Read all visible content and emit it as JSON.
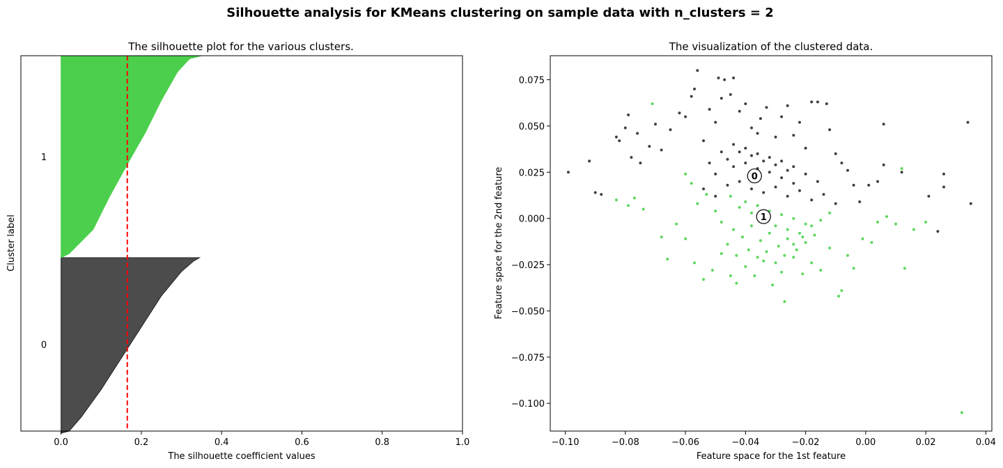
{
  "suptitle": "Silhouette analysis for KMeans clustering on sample data with n_clusters = 2",
  "chart_data": [
    {
      "type": "area",
      "title": "The silhouette plot for the various clusters.",
      "xlabel": "The silhouette coefficient values",
      "ylabel": "Cluster label",
      "xlim": [
        -0.1,
        1.0
      ],
      "xticks": [
        "0.0",
        "0.2",
        "0.4",
        "0.6",
        "0.8",
        "1.0"
      ],
      "xtick_values": [
        0.0,
        0.2,
        0.4,
        0.6,
        0.8,
        1.0
      ],
      "average_silhouette": 0.165,
      "average_line_color": "#ff0000",
      "clusters": [
        {
          "label": "0",
          "color": "#4c4c4c",
          "profile": [
            [
              0.0,
              -0.012
            ],
            [
              0.02,
              0.0
            ],
            [
              0.05,
              0.08
            ],
            [
              0.1,
              0.24
            ],
            [
              0.15,
              0.42
            ],
            [
              0.2,
              0.6
            ],
            [
              0.25,
              0.78
            ],
            [
              0.3,
              0.92
            ],
            [
              0.33,
              0.98
            ],
            [
              0.345,
              1.0
            ]
          ]
        },
        {
          "label": "1",
          "color": "#4ccf4c",
          "profile": [
            [
              0.0,
              0.0
            ],
            [
              0.02,
              0.02
            ],
            [
              0.08,
              0.14
            ],
            [
              0.12,
              0.3
            ],
            [
              0.17,
              0.48
            ],
            [
              0.21,
              0.62
            ],
            [
              0.25,
              0.78
            ],
            [
              0.29,
              0.92
            ],
            [
              0.32,
              0.985
            ],
            [
              0.35,
              1.0
            ]
          ]
        }
      ]
    },
    {
      "type": "scatter",
      "title": "The visualization of the clustered data.",
      "xlabel": "Feature space for the 1st feature",
      "ylabel": "Feature space for the 2nd feature",
      "xlim": [
        -0.105,
        0.042
      ],
      "ylim": [
        -0.115,
        0.088
      ],
      "xticks": [
        "−0.10",
        "−0.08",
        "−0.06",
        "−0.04",
        "−0.02",
        "0.00",
        "0.02",
        "0.04"
      ],
      "xtick_values": [
        -0.1,
        -0.08,
        -0.06,
        -0.04,
        -0.02,
        0.0,
        0.02,
        0.04
      ],
      "yticks": [
        "0.075",
        "0.050",
        "0.025",
        "0.000",
        "−0.025",
        "−0.050",
        "−0.075",
        "−0.100"
      ],
      "ytick_values": [
        0.075,
        0.05,
        0.025,
        0.0,
        -0.025,
        -0.05,
        -0.075,
        -0.1
      ],
      "series": [
        {
          "color": "#000000",
          "points": [
            [
              -0.099,
              0.025
            ],
            [
              -0.092,
              0.031
            ],
            [
              -0.09,
              0.014
            ],
            [
              -0.088,
              0.013
            ],
            [
              -0.083,
              0.044
            ],
            [
              -0.082,
              0.042
            ],
            [
              -0.08,
              0.049
            ],
            [
              -0.079,
              0.056
            ],
            [
              -0.078,
              0.033
            ],
            [
              -0.076,
              0.046
            ],
            [
              -0.075,
              0.03
            ],
            [
              -0.072,
              0.039
            ],
            [
              -0.07,
              0.051
            ],
            [
              -0.068,
              0.037
            ],
            [
              -0.065,
              0.048
            ],
            [
              -0.062,
              0.057
            ],
            [
              -0.06,
              0.055
            ],
            [
              -0.058,
              0.066
            ],
            [
              -0.057,
              0.07
            ],
            [
              -0.056,
              0.08
            ],
            [
              -0.054,
              0.042
            ],
            [
              -0.052,
              0.059
            ],
            [
              -0.05,
              0.052
            ],
            [
              -0.049,
              0.076
            ],
            [
              -0.048,
              0.065
            ],
            [
              -0.047,
              0.075
            ],
            [
              -0.045,
              0.067
            ],
            [
              -0.044,
              0.076
            ],
            [
              -0.042,
              0.058
            ],
            [
              -0.04,
              0.062
            ],
            [
              -0.038,
              0.049
            ],
            [
              -0.036,
              0.046
            ],
            [
              -0.035,
              0.054
            ],
            [
              -0.033,
              0.06
            ],
            [
              -0.03,
              0.044
            ],
            [
              -0.028,
              0.055
            ],
            [
              -0.026,
              0.061
            ],
            [
              -0.024,
              0.045
            ],
            [
              -0.022,
              0.052
            ],
            [
              -0.02,
              0.038
            ],
            [
              -0.018,
              0.063
            ],
            [
              -0.016,
              0.063
            ],
            [
              -0.013,
              0.062
            ],
            [
              -0.012,
              0.048
            ],
            [
              -0.01,
              0.035
            ],
            [
              -0.008,
              0.03
            ],
            [
              -0.006,
              0.026
            ],
            [
              -0.004,
              0.018
            ],
            [
              -0.002,
              0.009
            ],
            [
              0.001,
              0.018
            ],
            [
              0.004,
              0.02
            ],
            [
              0.006,
              0.029
            ],
            [
              0.006,
              0.051
            ],
            [
              0.012,
              0.025
            ],
            [
              0.021,
              0.012
            ],
            [
              0.024,
              -0.007
            ],
            [
              0.026,
              0.024
            ],
            [
              0.026,
              0.017
            ],
            [
              0.034,
              0.052
            ],
            [
              0.035,
              0.008
            ],
            [
              -0.046,
              0.032
            ],
            [
              -0.044,
              0.028
            ],
            [
              -0.042,
              0.036
            ],
            [
              -0.04,
              0.03
            ],
            [
              -0.038,
              0.034
            ],
            [
              -0.036,
              0.027
            ],
            [
              -0.034,
              0.031
            ],
            [
              -0.032,
              0.025
            ],
            [
              -0.03,
              0.029
            ],
            [
              -0.028,
              0.022
            ],
            [
              -0.026,
              0.026
            ],
            [
              -0.024,
              0.019
            ],
            [
              -0.05,
              0.024
            ],
            [
              -0.052,
              0.03
            ],
            [
              -0.048,
              0.036
            ],
            [
              -0.044,
              0.04
            ],
            [
              -0.04,
              0.038
            ],
            [
              -0.036,
              0.035
            ],
            [
              -0.032,
              0.033
            ],
            [
              -0.028,
              0.031
            ],
            [
              -0.024,
              0.028
            ],
            [
              -0.02,
              0.024
            ],
            [
              -0.016,
              0.02
            ],
            [
              -0.054,
              0.016
            ],
            [
              -0.05,
              0.012
            ],
            [
              -0.046,
              0.018
            ],
            [
              -0.042,
              0.02
            ],
            [
              -0.038,
              0.016
            ],
            [
              -0.034,
              0.014
            ],
            [
              -0.03,
              0.017
            ],
            [
              -0.026,
              0.012
            ],
            [
              -0.022,
              0.015
            ],
            [
              -0.018,
              0.01
            ],
            [
              -0.014,
              0.013
            ],
            [
              -0.01,
              0.008
            ]
          ]
        },
        {
          "color": "#28c828",
          "points": [
            [
              -0.083,
              0.01
            ],
            [
              -0.079,
              0.007
            ],
            [
              -0.077,
              0.011
            ],
            [
              -0.074,
              0.005
            ],
            [
              -0.071,
              0.062
            ],
            [
              -0.068,
              -0.01
            ],
            [
              -0.066,
              -0.022
            ],
            [
              -0.063,
              -0.003
            ],
            [
              -0.06,
              -0.011
            ],
            [
              -0.057,
              -0.024
            ],
            [
              -0.054,
              -0.033
            ],
            [
              -0.051,
              -0.028
            ],
            [
              -0.048,
              -0.019
            ],
            [
              -0.045,
              -0.031
            ],
            [
              -0.043,
              -0.035
            ],
            [
              -0.04,
              -0.026
            ],
            [
              -0.037,
              -0.031
            ],
            [
              -0.034,
              -0.023
            ],
            [
              -0.031,
              -0.036
            ],
            [
              -0.028,
              -0.029
            ],
            [
              -0.027,
              -0.045
            ],
            [
              -0.024,
              -0.021
            ],
            [
              -0.021,
              -0.03
            ],
            [
              -0.018,
              -0.024
            ],
            [
              -0.015,
              -0.028
            ],
            [
              -0.012,
              -0.016
            ],
            [
              -0.009,
              -0.042
            ],
            [
              -0.008,
              -0.039
            ],
            [
              -0.006,
              -0.02
            ],
            [
              -0.004,
              -0.027
            ],
            [
              -0.001,
              -0.011
            ],
            [
              0.002,
              -0.013
            ],
            [
              0.004,
              -0.002
            ],
            [
              0.007,
              0.001
            ],
            [
              0.01,
              -0.003
            ],
            [
              0.013,
              -0.027
            ],
            [
              0.016,
              -0.006
            ],
            [
              0.02,
              -0.002
            ],
            [
              0.012,
              0.027
            ],
            [
              0.032,
              -0.105
            ],
            [
              -0.045,
              0.012
            ],
            [
              -0.042,
              0.006
            ],
            [
              -0.04,
              0.009
            ],
            [
              -0.038,
              0.003
            ],
            [
              -0.036,
              0.007
            ],
            [
              -0.034,
              -0.001
            ],
            [
              -0.032,
              0.004
            ],
            [
              -0.03,
              -0.004
            ],
            [
              -0.028,
              0.002
            ],
            [
              -0.026,
              -0.006
            ],
            [
              -0.024,
              0.0
            ],
            [
              -0.022,
              -0.008
            ],
            [
              -0.02,
              -0.003
            ],
            [
              -0.044,
              -0.006
            ],
            [
              -0.041,
              -0.01
            ],
            [
              -0.038,
              -0.004
            ],
            [
              -0.035,
              -0.012
            ],
            [
              -0.032,
              -0.008
            ],
            [
              -0.029,
              -0.015
            ],
            [
              -0.026,
              -0.011
            ],
            [
              -0.023,
              -0.017
            ],
            [
              -0.02,
              -0.013
            ],
            [
              -0.017,
              -0.009
            ],
            [
              -0.05,
              0.004
            ],
            [
              -0.048,
              -0.002
            ],
            [
              -0.046,
              -0.014
            ],
            [
              -0.043,
              -0.02
            ],
            [
              -0.039,
              -0.017
            ],
            [
              -0.036,
              -0.021
            ],
            [
              -0.033,
              -0.018
            ],
            [
              -0.03,
              -0.024
            ],
            [
              -0.027,
              -0.02
            ],
            [
              -0.024,
              -0.014
            ],
            [
              -0.021,
              -0.01
            ],
            [
              -0.018,
              -0.004
            ],
            [
              -0.015,
              -0.001
            ],
            [
              -0.012,
              0.003
            ],
            [
              -0.056,
              0.008
            ],
            [
              -0.053,
              0.013
            ],
            [
              -0.058,
              0.019
            ],
            [
              -0.06,
              0.024
            ]
          ]
        }
      ],
      "centers": [
        {
          "label": "0",
          "x": -0.037,
          "y": 0.023
        },
        {
          "label": "1",
          "x": -0.034,
          "y": 0.001
        }
      ]
    }
  ]
}
